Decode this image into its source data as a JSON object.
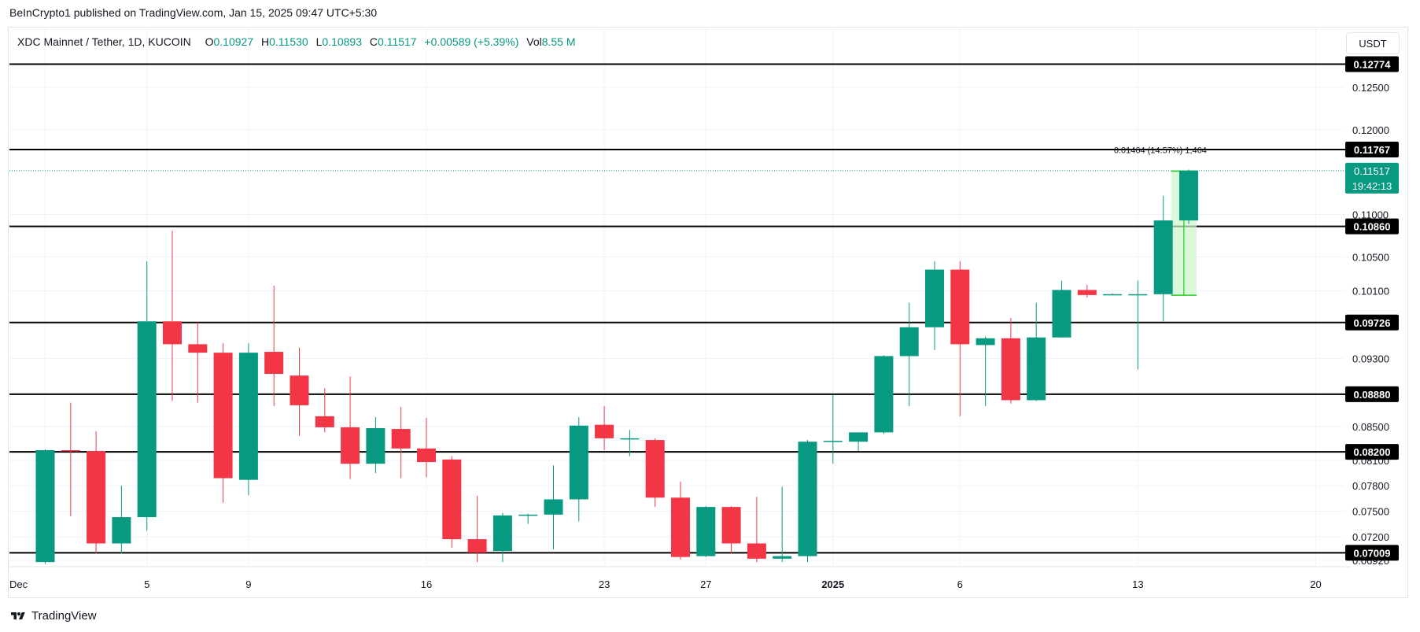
{
  "header": {
    "published": "BeInCrypto1 published on TradingView.com, Jan 15, 2025 09:47 UTC+5:30"
  },
  "legend": {
    "symbol": "XDC Mainnet / Tether, 1D, KUCOIN",
    "o_label": "O",
    "o_value": "0.10927",
    "h_label": "H",
    "h_value": "0.11530",
    "l_label": "L",
    "l_value": "0.10893",
    "c_label": "C",
    "c_value": "0.11517",
    "change": "+0.00589 (+5.39%)",
    "vol_label": "Vol",
    "vol_value": "8.55 M"
  },
  "currency_button": "USDT",
  "footer": {
    "brand": "TradingView"
  },
  "colors": {
    "up": "#089981",
    "down": "#f23645",
    "level": "#000000",
    "measure_fill": "#ccf5cc",
    "measure_line": "#22cc22"
  },
  "chart_data": {
    "type": "candlestick",
    "title": "XDC Mainnet / Tether, 1D, KUCOIN",
    "y_range": [
      0.0685,
      0.1315
    ],
    "y_ticks": [
      "0.12500",
      "0.12000",
      "0.11000",
      "0.10500",
      "0.10100",
      "0.09300",
      "0.08500",
      "0.08100",
      "0.07800",
      "0.07500",
      "0.07200",
      "0.06920"
    ],
    "y_tick_values": [
      0.125,
      0.12,
      0.11,
      0.105,
      0.101,
      0.093,
      0.085,
      0.081,
      0.078,
      0.075,
      0.072,
      0.0692
    ],
    "x_range": [
      0,
      51
    ],
    "x_ticks": [
      {
        "index": 0,
        "label": "Dec",
        "bold": false
      },
      {
        "index": 4,
        "label": "5",
        "bold": false
      },
      {
        "index": 8,
        "label": "9",
        "bold": false
      },
      {
        "index": 15,
        "label": "16",
        "bold": false
      },
      {
        "index": 22,
        "label": "23",
        "bold": false
      },
      {
        "index": 26,
        "label": "27",
        "bold": false
      },
      {
        "index": 31,
        "label": "2025",
        "bold": true
      },
      {
        "index": 36,
        "label": "6",
        "bold": false
      },
      {
        "index": 43,
        "label": "13",
        "bold": false
      },
      {
        "index": 50,
        "label": "20",
        "bold": false
      }
    ],
    "candles": [
      {
        "o": 0.069,
        "h": 0.0823,
        "l": 0.0688,
        "c": 0.0822
      },
      {
        "o": 0.0822,
        "h": 0.0878,
        "l": 0.0744,
        "c": 0.0821
      },
      {
        "o": 0.0821,
        "h": 0.0844,
        "l": 0.07,
        "c": 0.0712
      },
      {
        "o": 0.0712,
        "h": 0.078,
        "l": 0.07,
        "c": 0.0743
      },
      {
        "o": 0.0743,
        "h": 0.1045,
        "l": 0.0727,
        "c": 0.0974
      },
      {
        "o": 0.0974,
        "h": 0.1081,
        "l": 0.088,
        "c": 0.0947
      },
      {
        "o": 0.0947,
        "h": 0.0973,
        "l": 0.0878,
        "c": 0.0937
      },
      {
        "o": 0.0937,
        "h": 0.0948,
        "l": 0.076,
        "c": 0.0789
      },
      {
        "o": 0.0787,
        "h": 0.0948,
        "l": 0.0769,
        "c": 0.0937
      },
      {
        "o": 0.0938,
        "h": 0.1016,
        "l": 0.0874,
        "c": 0.0912
      },
      {
        "o": 0.091,
        "h": 0.0943,
        "l": 0.0839,
        "c": 0.0875
      },
      {
        "o": 0.0862,
        "h": 0.0895,
        "l": 0.0843,
        "c": 0.0849
      },
      {
        "o": 0.0849,
        "h": 0.0909,
        "l": 0.0788,
        "c": 0.0806
      },
      {
        "o": 0.0806,
        "h": 0.0861,
        "l": 0.0795,
        "c": 0.0848
      },
      {
        "o": 0.0847,
        "h": 0.0873,
        "l": 0.0789,
        "c": 0.0824
      },
      {
        "o": 0.0824,
        "h": 0.086,
        "l": 0.079,
        "c": 0.0808
      },
      {
        "o": 0.0811,
        "h": 0.0815,
        "l": 0.0707,
        "c": 0.0717
      },
      {
        "o": 0.0717,
        "h": 0.0768,
        "l": 0.069,
        "c": 0.0701
      },
      {
        "o": 0.0703,
        "h": 0.0748,
        "l": 0.069,
        "c": 0.0745
      },
      {
        "o": 0.0745,
        "h": 0.0747,
        "l": 0.0735,
        "c": 0.0746
      },
      {
        "o": 0.0746,
        "h": 0.0804,
        "l": 0.0705,
        "c": 0.0764
      },
      {
        "o": 0.0764,
        "h": 0.0861,
        "l": 0.0738,
        "c": 0.0851
      },
      {
        "o": 0.0852,
        "h": 0.0874,
        "l": 0.0822,
        "c": 0.0836
      },
      {
        "o": 0.0836,
        "h": 0.0846,
        "l": 0.0815,
        "c": 0.0836
      },
      {
        "o": 0.0834,
        "h": 0.0836,
        "l": 0.0755,
        "c": 0.0766
      },
      {
        "o": 0.0766,
        "h": 0.0785,
        "l": 0.0693,
        "c": 0.0696
      },
      {
        "o": 0.0697,
        "h": 0.0756,
        "l": 0.0696,
        "c": 0.0755
      },
      {
        "o": 0.0755,
        "h": 0.0756,
        "l": 0.07,
        "c": 0.0712
      },
      {
        "o": 0.0712,
        "h": 0.0767,
        "l": 0.069,
        "c": 0.0694
      },
      {
        "o": 0.0694,
        "h": 0.0779,
        "l": 0.069,
        "c": 0.0697
      },
      {
        "o": 0.0697,
        "h": 0.0834,
        "l": 0.069,
        "c": 0.0832
      },
      {
        "o": 0.0832,
        "h": 0.0887,
        "l": 0.0806,
        "c": 0.0833
      },
      {
        "o": 0.0832,
        "h": 0.0843,
        "l": 0.0821,
        "c": 0.0843
      },
      {
        "o": 0.0843,
        "h": 0.0934,
        "l": 0.0841,
        "c": 0.0933
      },
      {
        "o": 0.0933,
        "h": 0.0996,
        "l": 0.0874,
        "c": 0.0967
      },
      {
        "o": 0.0967,
        "h": 0.1045,
        "l": 0.094,
        "c": 0.1035
      },
      {
        "o": 0.1035,
        "h": 0.1045,
        "l": 0.0862,
        "c": 0.0947
      },
      {
        "o": 0.0946,
        "h": 0.0956,
        "l": 0.0874,
        "c": 0.0954
      },
      {
        "o": 0.0954,
        "h": 0.0978,
        "l": 0.0877,
        "c": 0.0881
      },
      {
        "o": 0.0881,
        "h": 0.0996,
        "l": 0.088,
        "c": 0.0955
      },
      {
        "o": 0.0955,
        "h": 0.1022,
        "l": 0.0955,
        "c": 0.1011
      },
      {
        "o": 0.1011,
        "h": 0.1017,
        "l": 0.1002,
        "c": 0.1005
      },
      {
        "o": 0.1005,
        "h": 0.1007,
        "l": 0.1005,
        "c": 0.1006
      },
      {
        "o": 0.1006,
        "h": 0.1022,
        "l": 0.0917,
        "c": 0.1006
      },
      {
        "o": 0.1006,
        "h": 0.1122,
        "l": 0.0974,
        "c": 0.1093
      },
      {
        "o": 0.1093,
        "h": 0.1153,
        "l": 0.1089,
        "c": 0.11517
      }
    ],
    "levels": [
      "0.12774",
      "0.11767",
      "0.10860",
      "0.09726",
      "0.08880",
      "0.08200",
      "0.07009"
    ],
    "level_values": [
      0.12774,
      0.11767,
      0.1086,
      0.09726,
      0.0888,
      0.082,
      0.07009
    ],
    "last_price": {
      "value": 0.11517,
      "label": "0.11517",
      "countdown": "19:42:13"
    },
    "measure": {
      "from_index": 44,
      "to_index": 45,
      "low": 0.10048,
      "high": 0.11512,
      "label": "0.01464 (14.57%) 1,464"
    }
  }
}
